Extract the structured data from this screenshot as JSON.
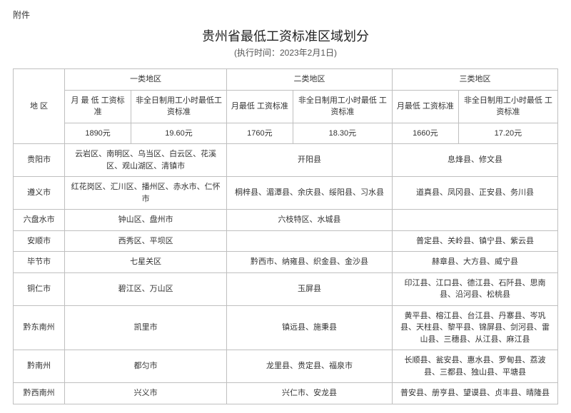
{
  "attachment_label": "附件",
  "title": "贵州省最低工资标准区域划分",
  "subtitle": "(执行时间：2023年2月1日)",
  "headers": {
    "region": "地  区",
    "cat1": "一类地区",
    "cat2": "二类地区",
    "cat3": "三类地区",
    "monthly": "月 最 低\n工资标准",
    "hourly": "非全日制用工小时最低工资标准",
    "monthly_short": "月最低\n工资标准",
    "hourly_cat2": "非全日制用工小时最低\n工资标准",
    "hourly_cat3": "非全日制用工小时最低\n工资标准"
  },
  "values": {
    "c1m": "1890元",
    "c1h": "19.60元",
    "c2m": "1760元",
    "c2h": "18.30元",
    "c3m": "1660元",
    "c3h": "17.20元"
  },
  "rows": [
    {
      "region": "贵阳市",
      "c1": "云岩区、南明区、乌当区、白云区、花溪区、观山湖区、清镇市",
      "c2": "开阳县",
      "c3": "息烽县、修文县"
    },
    {
      "region": "遵义市",
      "c1": "红花岗区、汇川区、播州区、赤水市、仁怀市",
      "c2": "桐梓县、湄潭县、余庆县、绥阳县、习水县",
      "c3": "道真县、凤冈县、正安县、务川县"
    },
    {
      "region": "六盘水市",
      "c1": "钟山区、盘州市",
      "c2": "六枝特区、水城县",
      "c3": ""
    },
    {
      "region": "安顺市",
      "c1": "西秀区、平坝区",
      "c2": "",
      "c3": "普定县、关岭县、镇宁县、紫云县"
    },
    {
      "region": "毕节市",
      "c1": "七星关区",
      "c2": "黔西市、纳雍县、织金县、金沙县",
      "c3": "赫章县、大方县、威宁县"
    },
    {
      "region": "铜仁市",
      "c1": "碧江区、万山区",
      "c2": "玉屏县",
      "c3": "印江县、江口县、德江县、石阡县、思南县、沿河县、松桃县"
    },
    {
      "region": "黔东南州",
      "c1": "凯里市",
      "c2": "镇远县、施秉县",
      "c3": "黄平县、榕江县、台江县、丹寨县、岑巩县、天柱县、黎平县、锦屏县、剑河县、雷山县、三穗县、从江县、麻江县"
    },
    {
      "region": "黔南州",
      "c1": "都匀市",
      "c2": "龙里县、贵定县、福泉市",
      "c3": "长顺县、瓮安县、惠水县、罗甸县、荔波县、三都县、独山县、平塘县"
    },
    {
      "region": "黔西南州",
      "c1": "兴义市",
      "c2": "兴仁市、安龙县",
      "c3": "普安县、册亨县、望谟县、贞丰县、晴隆县"
    }
  ],
  "style": {
    "border_color": "#bfbfbf",
    "bg": "#ffffff",
    "text_color": "#333333",
    "title_color": "#222222",
    "font_family": "Microsoft YaHei",
    "title_fontsize_pt": 14,
    "body_fontsize_pt": 8.5
  }
}
